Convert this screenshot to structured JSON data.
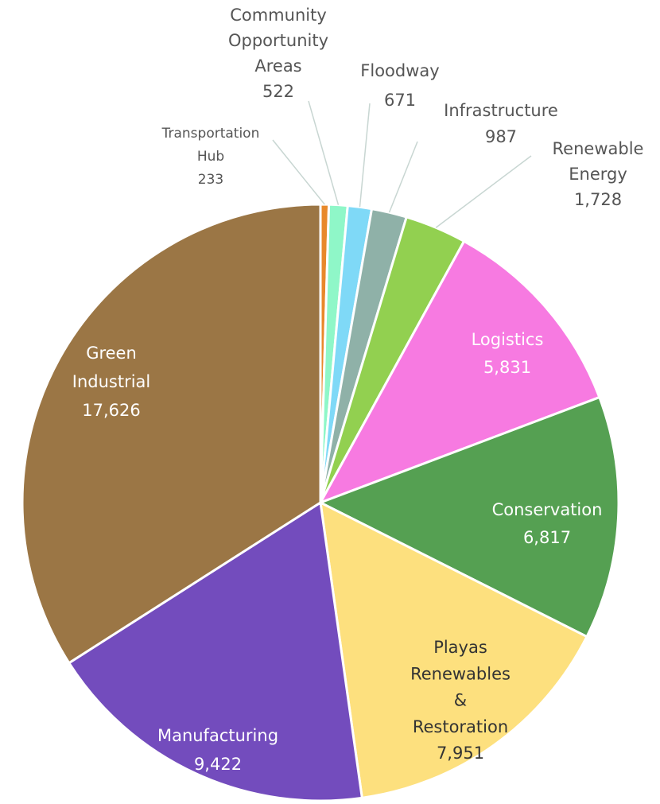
{
  "chart_data": {
    "type": "pie",
    "categories": [
      [
        "Transportation",
        "Hub"
      ],
      [
        "Community",
        "Opportunity",
        "Areas"
      ],
      [
        "Floodway"
      ],
      [
        "Infrastructure"
      ],
      [
        "Renewable",
        "Energy"
      ],
      [
        "Logistics"
      ],
      [
        "Conservation"
      ],
      [
        "Playas",
        "Renewables",
        "&",
        "Restoration"
      ],
      [
        "Manufacturing"
      ],
      [
        "Green",
        "Industrial"
      ]
    ],
    "values": [
      233,
      522,
      671,
      987,
      1728,
      5831,
      6817,
      7951,
      9422,
      17626
    ],
    "value_labels": [
      "233",
      "522",
      "671",
      "987",
      "1,728",
      "5,831",
      "6,817",
      "7,951",
      "9,422",
      "17,626"
    ],
    "colors": [
      "#e8892b",
      "#8ff7c8",
      "#7fd9f7",
      "#8fb1a8",
      "#92d050",
      "#f77ae1",
      "#55a052",
      "#fde07e",
      "#734cbd",
      "#9b7645"
    ]
  }
}
